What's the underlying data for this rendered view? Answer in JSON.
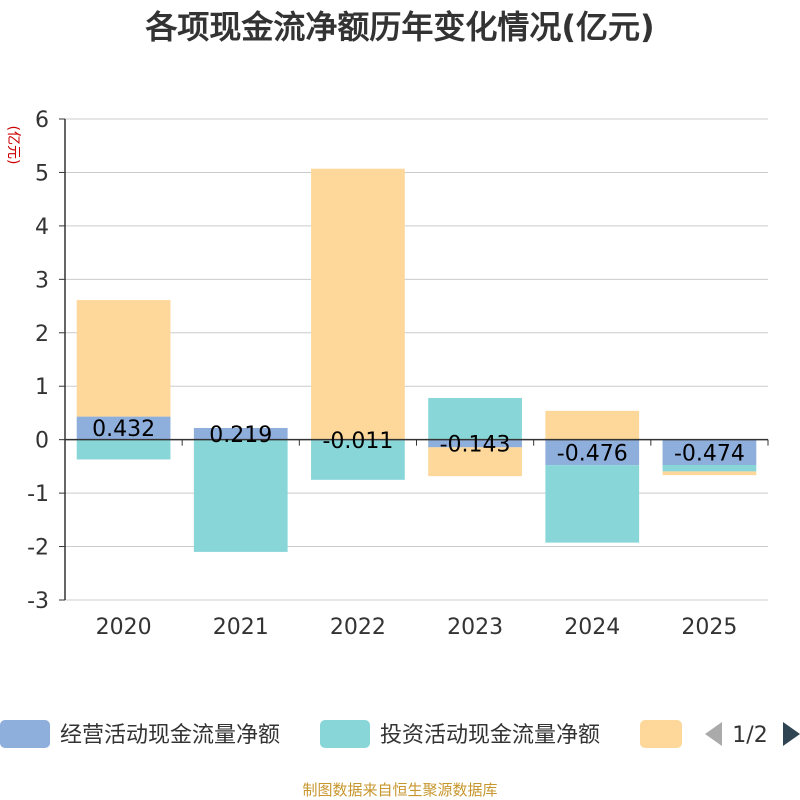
{
  "source": "制图数据来自恒生聚源数据库",
  "legend": {
    "page": "1/2",
    "items": [
      {
        "name": "经营活动现金流量净额",
        "color": "#8eaedb"
      },
      {
        "name": "投资活动现金流量净额",
        "color": "#88d6d8"
      },
      {
        "name": "",
        "color": "#fdd89a"
      }
    ]
  },
  "chart_data": {
    "type": "bar",
    "stacked": true,
    "title": "各项现金流净额历年变化情况(亿元)",
    "ylabel": "(亿元)",
    "xlabel": "",
    "categories": [
      "2020",
      "2021",
      "2022",
      "2023",
      "2024",
      "2025"
    ],
    "ylim": [
      -3,
      6
    ],
    "yticks": [
      -3,
      -2,
      -1,
      0,
      1,
      2,
      3,
      4,
      5,
      6
    ],
    "grid": true,
    "series": [
      {
        "name": "经营活动现金流量净额",
        "color": "#8eaedb",
        "values": [
          0.432,
          0.219,
          -0.011,
          -0.143,
          -0.476,
          -0.474
        ],
        "labels": [
          "0.432",
          "0.219",
          "-0.011",
          "-0.143",
          "-0.476",
          "-0.474"
        ]
      },
      {
        "name": "投资活动现金流量净额",
        "color": "#88d6d8",
        "values": [
          -0.37,
          -2.1,
          -0.74,
          0.78,
          -1.45,
          -0.12
        ]
      },
      {
        "name": "",
        "color": "#fdd89a",
        "values": [
          2.18,
          0.0,
          5.07,
          -0.54,
          0.54,
          -0.07
        ]
      }
    ]
  }
}
